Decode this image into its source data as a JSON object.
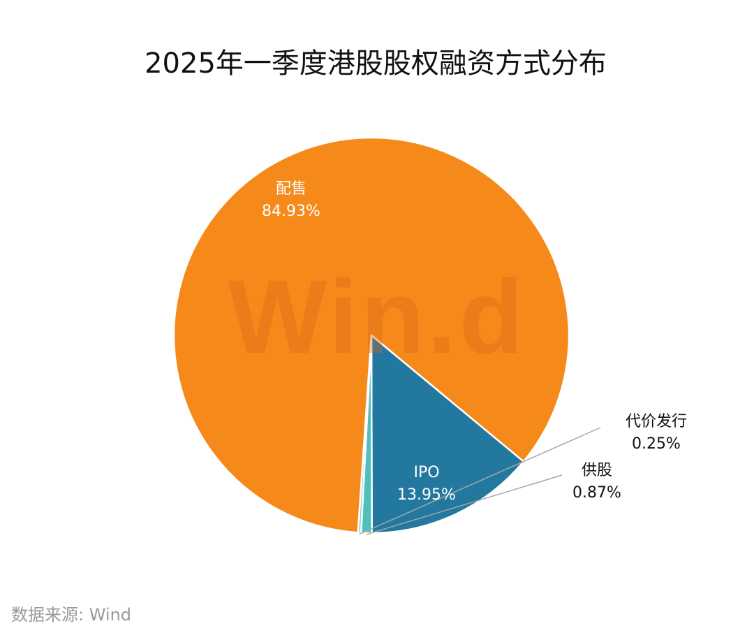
{
  "chart_data": {
    "type": "pie",
    "title": "2025年一季度港股股权融资方式分布",
    "slices": [
      {
        "name": "配售",
        "label": "84.93%",
        "value": 84.93,
        "color": "#f58a1b"
      },
      {
        "name": "IPO",
        "label": "13.95%",
        "value": 13.95,
        "color": "#23789f"
      },
      {
        "name": "供股",
        "label": "0.87%",
        "value": 0.87,
        "color": "#4fbfbc"
      },
      {
        "name": "代价发行",
        "label": "0.25%",
        "value": 0.25,
        "color": "#8fd3cf"
      }
    ],
    "legend": "none"
  },
  "source": "数据来源: Wind",
  "watermark": "Win.d"
}
